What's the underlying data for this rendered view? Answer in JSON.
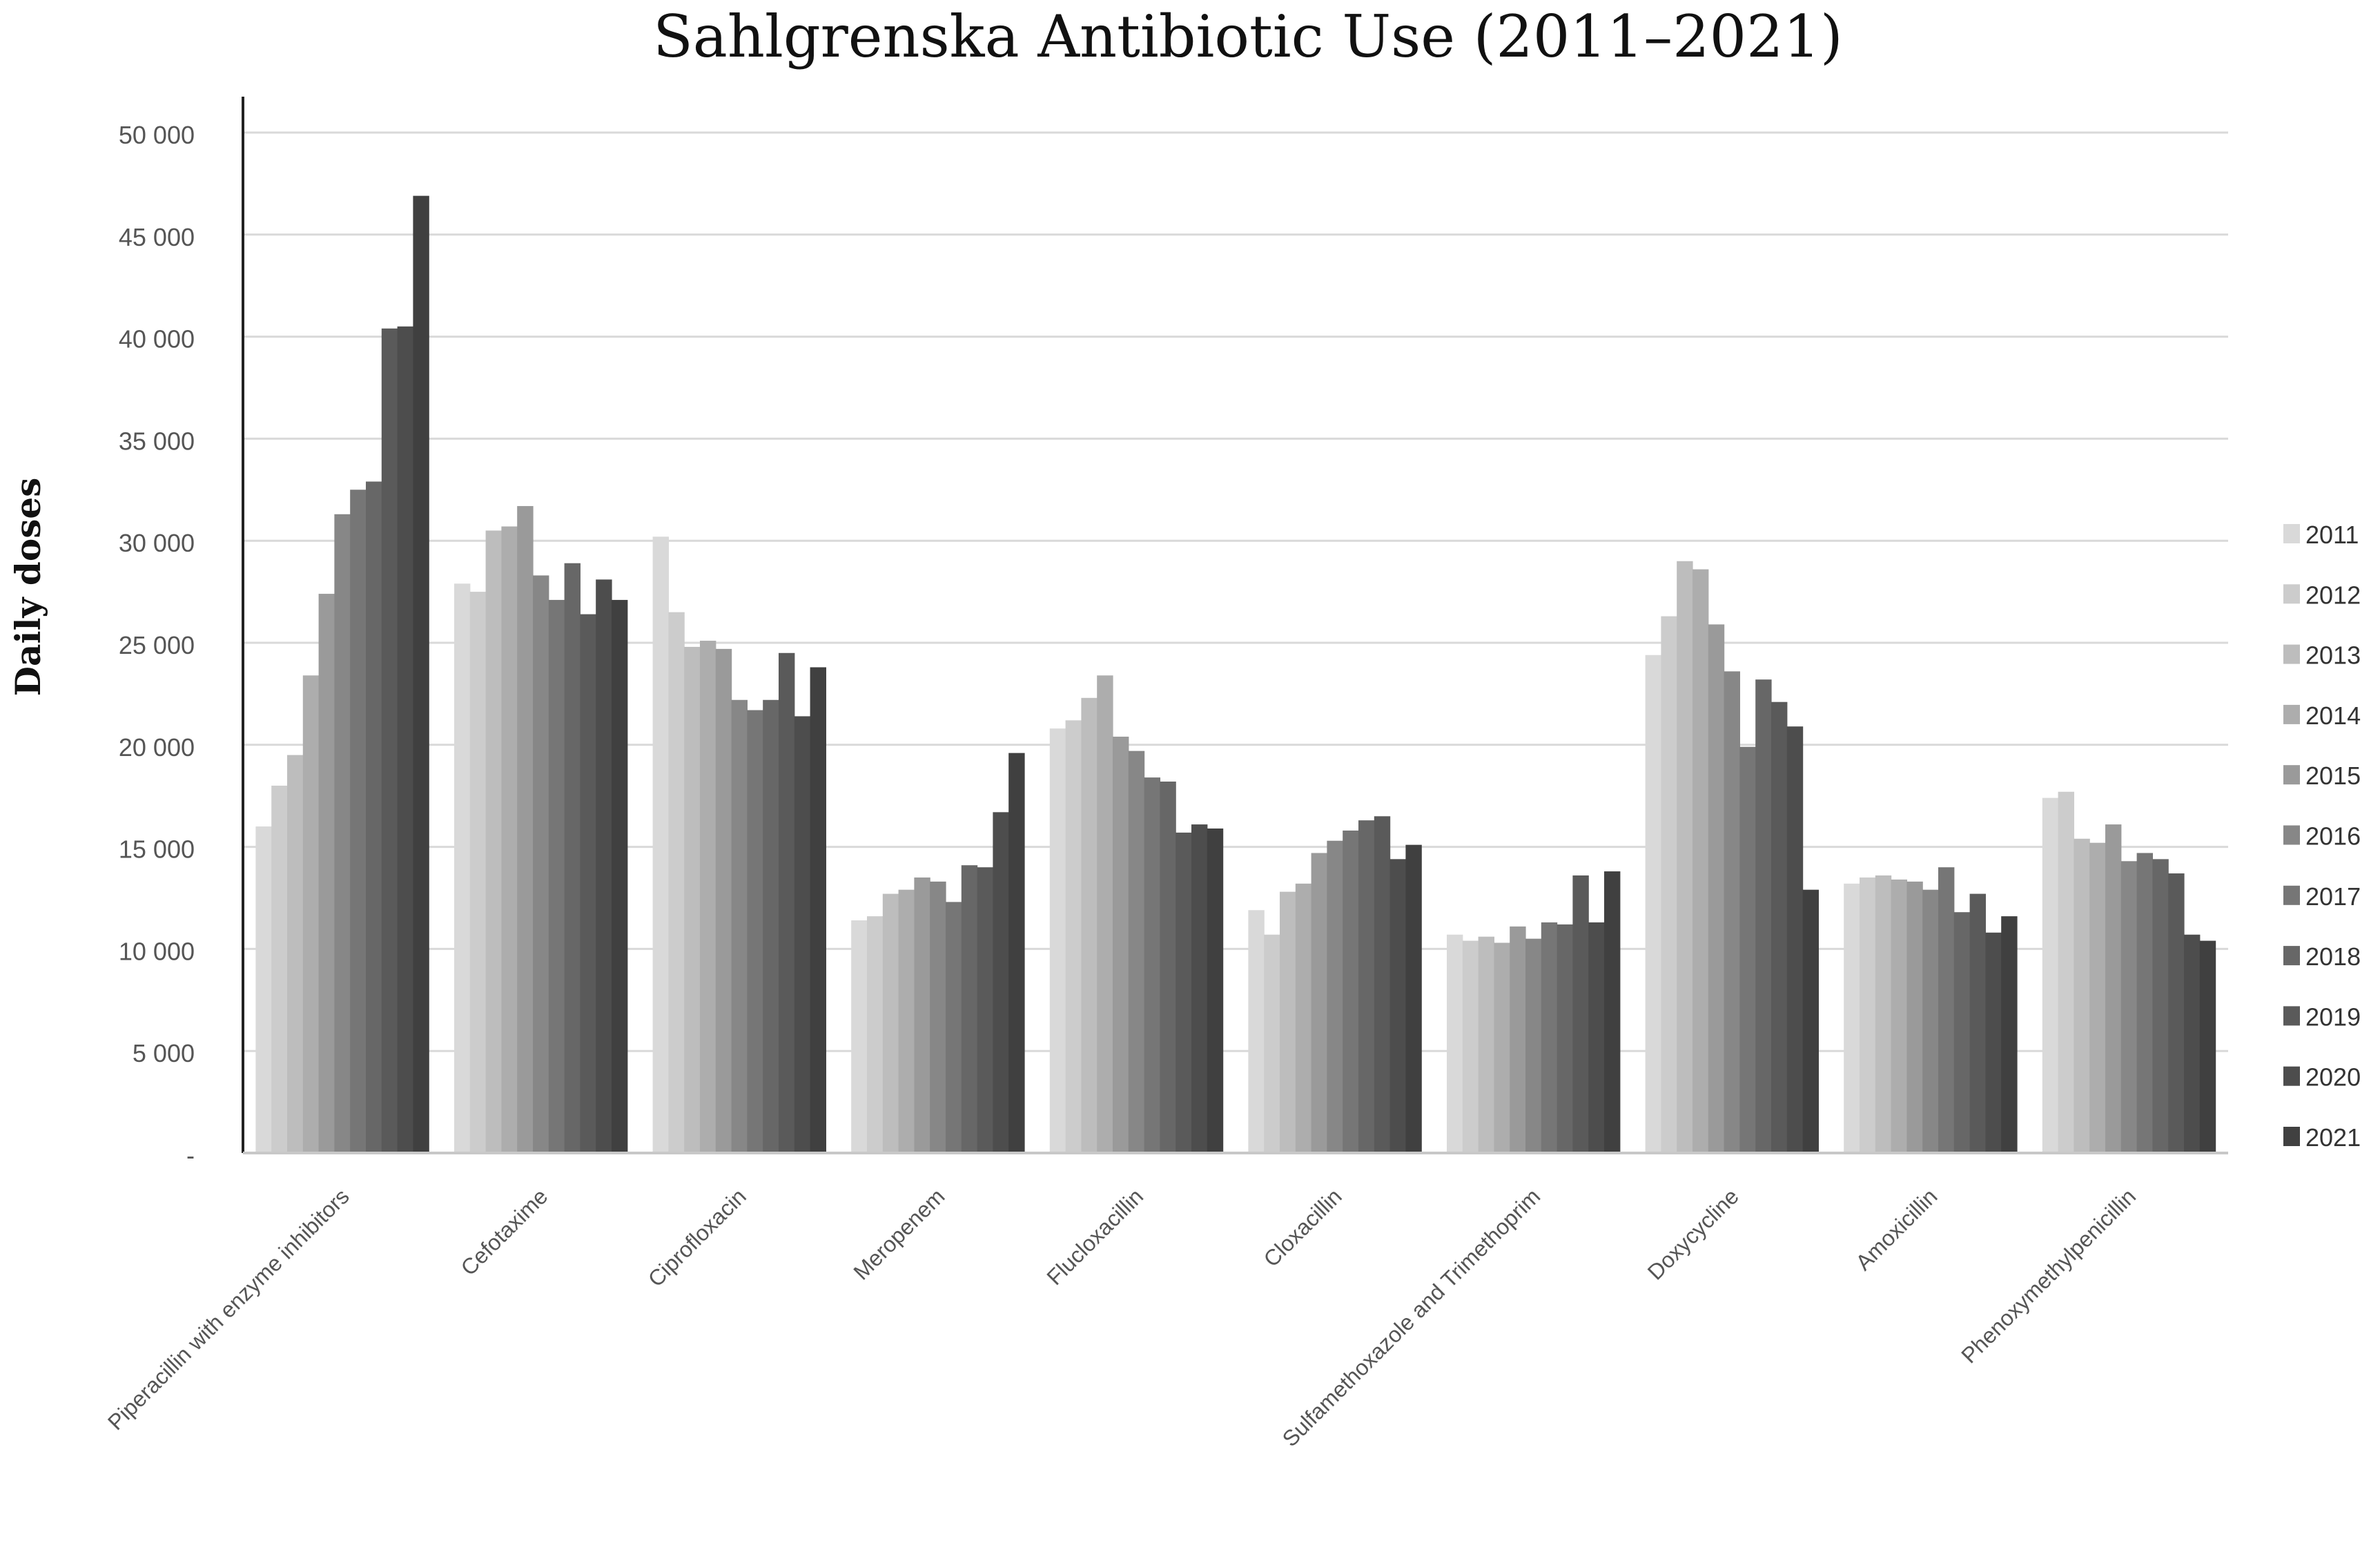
{
  "chart_data": {
    "type": "bar",
    "title": "Sahlgrenska Antibiotic Use (2011–2021)",
    "ylabel": "Daily doses",
    "xlabel": "",
    "ylim": [
      0,
      50000
    ],
    "y_ticks": [
      {
        "value": 0,
        "label": "-"
      },
      {
        "value": 5000,
        "label": "5 000"
      },
      {
        "value": 10000,
        "label": "10 000"
      },
      {
        "value": 15000,
        "label": "15 000"
      },
      {
        "value": 20000,
        "label": "20 000"
      },
      {
        "value": 25000,
        "label": "25 000"
      },
      {
        "value": 30000,
        "label": "30 000"
      },
      {
        "value": 35000,
        "label": "35 000"
      },
      {
        "value": 40000,
        "label": "40 000"
      },
      {
        "value": 45000,
        "label": "45 000"
      },
      {
        "value": 50000,
        "label": "50 000"
      }
    ],
    "grid": true,
    "legend_position": "right",
    "categories": [
      "Piperacillin with enzyme inhibitors",
      "Cefotaxime",
      "Ciprofloxacin",
      "Meropenem",
      "Flucloxacillin",
      "Cloxacillin",
      "Sulfamethoxazole and Trimethoprim",
      "Doxycycline",
      "Amoxicillin",
      "Phenoxymethylpenicillin"
    ],
    "series": [
      {
        "name": "2011",
        "color": "#d9d9d9",
        "values": [
          16000,
          27900,
          30200,
          11400,
          20800,
          11900,
          10700,
          24400,
          13200,
          17400
        ]
      },
      {
        "name": "2012",
        "color": "#cccccc",
        "values": [
          18000,
          27500,
          26500,
          11600,
          21200,
          10700,
          10400,
          26300,
          13500,
          17700
        ]
      },
      {
        "name": "2013",
        "color": "#bdbdbd",
        "values": [
          19500,
          30500,
          24800,
          12700,
          22300,
          12800,
          10600,
          29000,
          13600,
          15400
        ]
      },
      {
        "name": "2014",
        "color": "#adadad",
        "values": [
          23400,
          30700,
          25100,
          12900,
          23400,
          13200,
          10300,
          28600,
          13400,
          15200
        ]
      },
      {
        "name": "2015",
        "color": "#9a9a9a",
        "values": [
          27400,
          31700,
          24700,
          13500,
          20400,
          14700,
          11100,
          25900,
          13300,
          16100
        ]
      },
      {
        "name": "2016",
        "color": "#878787",
        "values": [
          31300,
          28300,
          22200,
          13300,
          19700,
          15300,
          10500,
          23600,
          12900,
          14300
        ]
      },
      {
        "name": "2017",
        "color": "#767676",
        "values": [
          32500,
          27100,
          21700,
          12300,
          18400,
          15800,
          11300,
          19900,
          14000,
          14700
        ]
      },
      {
        "name": "2018",
        "color": "#676767",
        "values": [
          32900,
          28900,
          22200,
          14100,
          18200,
          16300,
          11200,
          23200,
          11800,
          14400
        ]
      },
      {
        "name": "2019",
        "color": "#5a5a5a",
        "values": [
          40400,
          26400,
          24500,
          14000,
          15700,
          16500,
          13600,
          22100,
          12700,
          13700
        ]
      },
      {
        "name": "2020",
        "color": "#4d4d4d",
        "values": [
          40500,
          28100,
          21400,
          16700,
          16100,
          14400,
          11300,
          20900,
          10800,
          10700
        ]
      },
      {
        "name": "2021",
        "color": "#404040",
        "values": [
          46900,
          27100,
          23800,
          19600,
          15900,
          15100,
          13800,
          12900,
          11600,
          10400
        ]
      }
    ]
  }
}
